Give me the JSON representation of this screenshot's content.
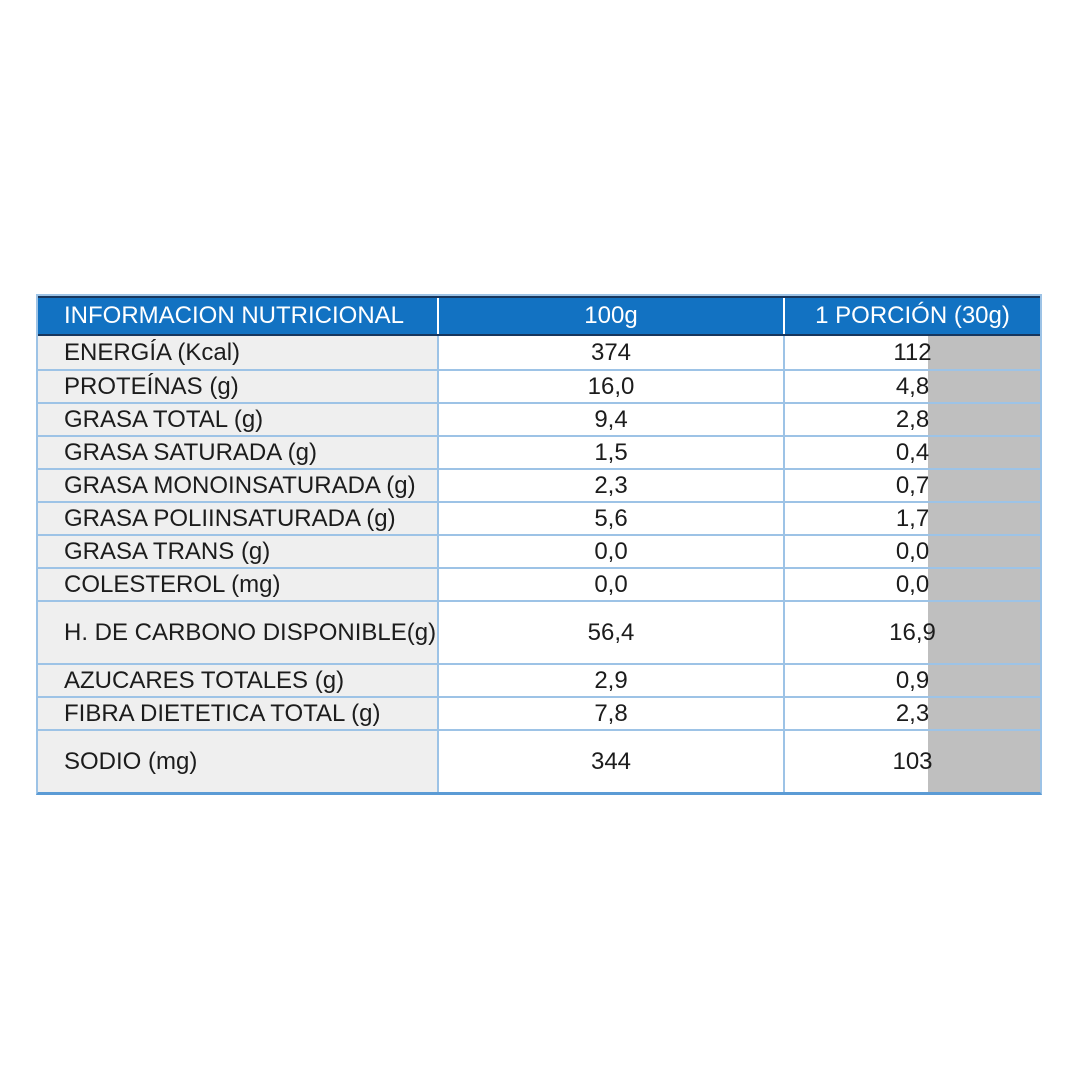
{
  "table": {
    "title": "INFORMACION NUTRICIONAL",
    "columns": {
      "info": "INFORMACION NUTRICIONAL",
      "per_100g": "100g",
      "per_portion": "1 PORCIÓN (30g)"
    },
    "rows": [
      {
        "label": "ENERGÍA (Kcal)",
        "per_100g": "374",
        "per_portion": "112"
      },
      {
        "label": "PROTEÍNAS (g)",
        "per_100g": "16,0",
        "per_portion": "4,8"
      },
      {
        "label": "GRASA TOTAL (g)",
        "per_100g": "9,4",
        "per_portion": "2,8"
      },
      {
        "label": "GRASA SATURADA (g)",
        "per_100g": "1,5",
        "per_portion": "0,4"
      },
      {
        "label": "GRASA MONOINSATURADA (g)",
        "per_100g": "2,3",
        "per_portion": "0,7"
      },
      {
        "label": "GRASA POLIINSATURADA (g)",
        "per_100g": "5,6",
        "per_portion": "1,7"
      },
      {
        "label": "GRASA TRANS (g)",
        "per_100g": "0,0",
        "per_portion": "0,0"
      },
      {
        "label": "COLESTEROL (mg)",
        "per_100g": "0,0",
        "per_portion": "0,0"
      },
      {
        "label": "H. DE CARBONO DISPONIBLE(g)",
        "per_100g": "56,4",
        "per_portion": "16,9"
      },
      {
        "label": "AZUCARES TOTALES (g)",
        "per_100g": "2,9",
        "per_portion": "0,9"
      },
      {
        "label": "FIBRA DIETETICA TOTAL (g)",
        "per_100g": "7,8",
        "per_portion": "2,3"
      },
      {
        "label": "SODIO (mg)",
        "per_100g": "344",
        "per_portion": "103"
      }
    ],
    "colors": {
      "header_bg": "#1272C2",
      "header_text": "#FFFFFF",
      "header_border": "#17365D",
      "grid_line": "#9DC3E6",
      "bottom_border": "#5B9BD5",
      "label_cell_bg": "#EFEFEF",
      "gray_overlay": "#BFBFBF",
      "body_text": "#1C1C1C"
    }
  }
}
